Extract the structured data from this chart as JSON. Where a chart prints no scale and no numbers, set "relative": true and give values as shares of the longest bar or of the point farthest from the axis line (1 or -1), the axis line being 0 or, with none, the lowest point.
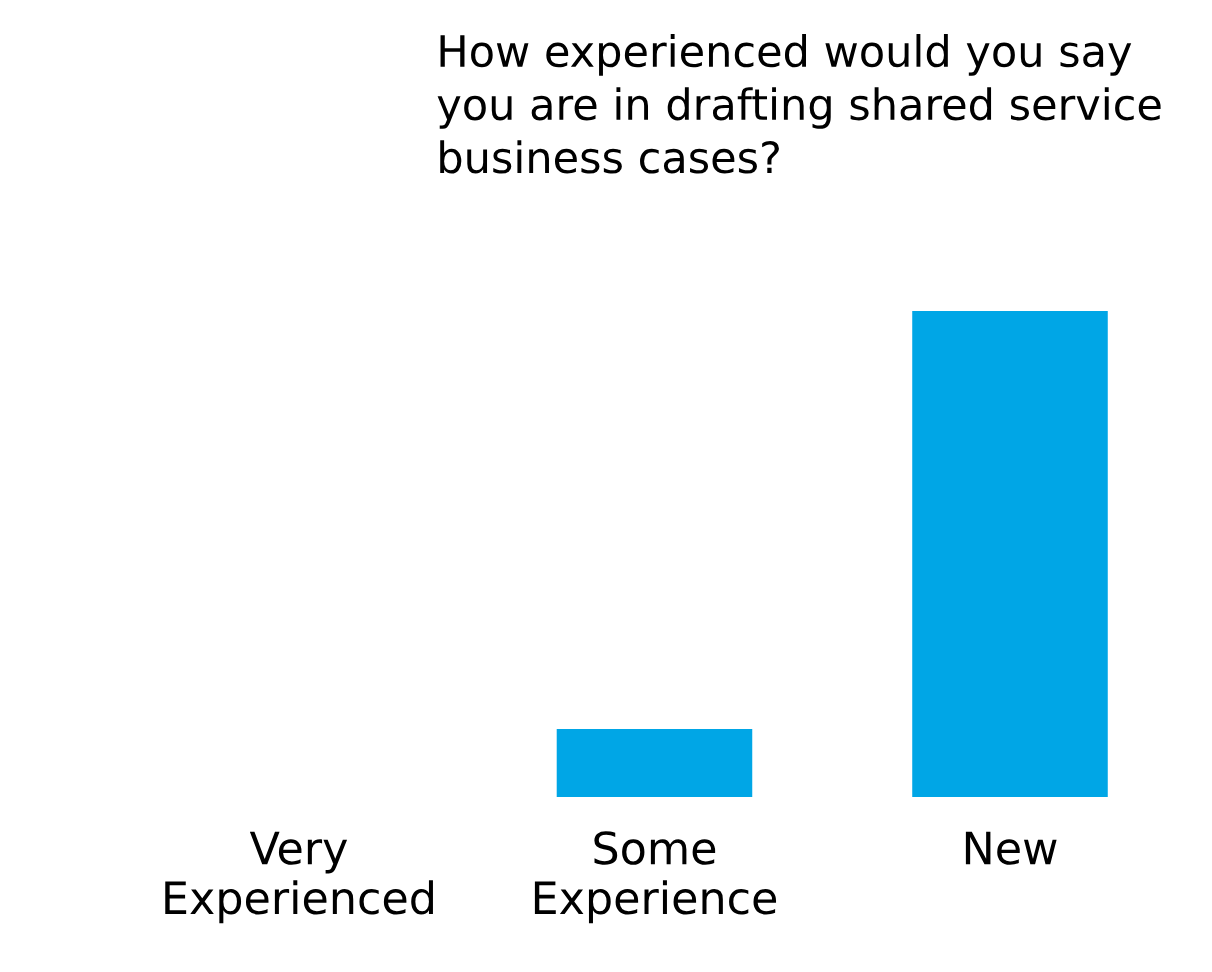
{
  "chart_data": {
    "type": "bar",
    "title": "How experienced would you say\nyou are in drafting shared service\nbusiness cases?",
    "categories": [
      "Very\nExperienced",
      "Some\nExperience",
      "New"
    ],
    "values": [
      0,
      0.14,
      1
    ],
    "color": "#00a6e6",
    "relative": true,
    "grid": false,
    "legend": false
  }
}
